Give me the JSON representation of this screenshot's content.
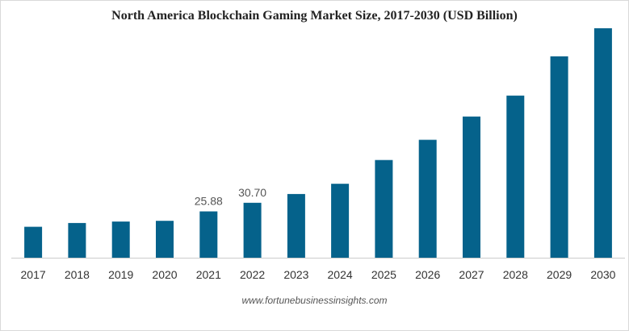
{
  "chart_data": {
    "type": "bar",
    "title": "North America Blockchain Gaming Market Size, 2017-2030 (USD Billion)",
    "source": "www.fortunebusinessinsights.com",
    "categories": [
      "2017",
      "2018",
      "2019",
      "2020",
      "2021",
      "2022",
      "2023",
      "2024",
      "2025",
      "2026",
      "2027",
      "2028",
      "2029",
      "2030"
    ],
    "values": [
      17.3,
      19.4,
      20.2,
      20.6,
      25.88,
      30.7,
      35.6,
      41.3,
      54.6,
      65.9,
      78.9,
      90.6,
      112.5,
      128.2
    ],
    "data_labels": {
      "2021": "25.88",
      "2022": "30.70"
    },
    "ylim": [
      0,
      135
    ],
    "xlabel": "",
    "ylabel": "",
    "grid": false,
    "legend": "none",
    "bar_color": "#05628b"
  }
}
